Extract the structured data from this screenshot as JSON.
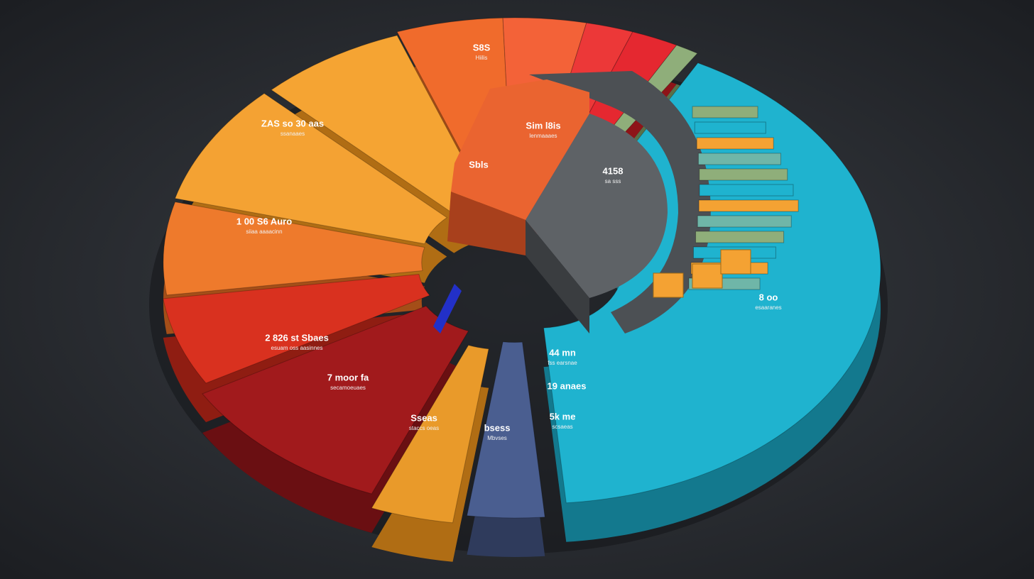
{
  "labels": [
    {
      "title": "S8S",
      "sub": "Hiilis"
    },
    {
      "title": "ZAS so 30 aas",
      "sub": "ssanaaes"
    },
    {
      "title": "Sim l8is",
      "sub": "lenmaaaes"
    },
    {
      "title": "Sbls",
      "sub": ""
    },
    {
      "title": "4158",
      "sub": "sa sss"
    },
    {
      "title": "1 00 S6 Auro",
      "sub": "siiaa aaaacinn"
    },
    {
      "title": "2 826 st Sbaes",
      "sub": "esuam oss aasinnes"
    },
    {
      "title": "7 moor fa",
      "sub": "secamoeuaes"
    },
    {
      "title": "Sseas",
      "sub": "staccs oeas"
    },
    {
      "title": "bsess",
      "sub": "Mbvses"
    },
    {
      "title": "44 mn",
      "sub": "fss earsnae"
    },
    {
      "title": "19 anaes",
      "sub": ""
    },
    {
      "title": "5k me",
      "sub": "scsaeas"
    },
    {
      "title": "8 oo",
      "sub": "esaaranes"
    }
  ]
}
